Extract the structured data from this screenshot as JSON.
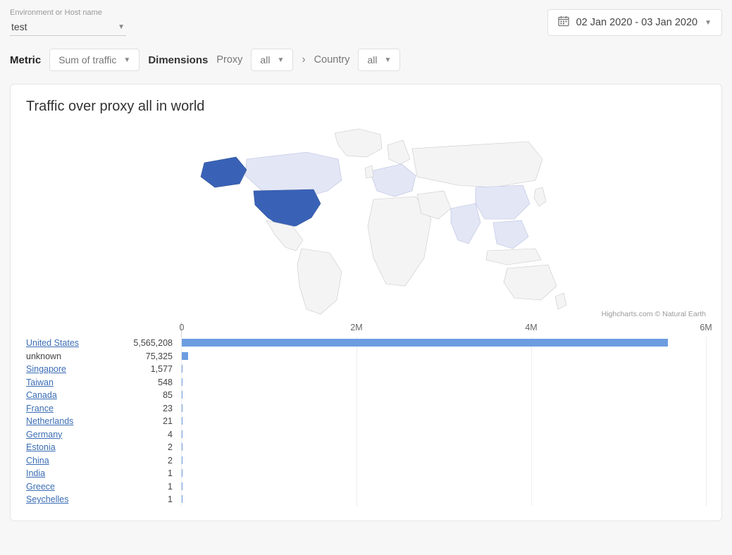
{
  "env": {
    "label": "Environment or Host name",
    "value": "test"
  },
  "date_range": "02 Jan 2020 - 03 Jan 2020",
  "filters": {
    "metric_label": "Metric",
    "metric_value": "Sum of traffic",
    "dimensions_label": "Dimensions",
    "proxy_label": "Proxy",
    "proxy_value": "all",
    "country_label": "Country",
    "country_value": "all"
  },
  "card": {
    "title": "Traffic over proxy all in world",
    "credit": "Highcharts.com © Natural Earth"
  },
  "map": {
    "base_fill": "#f4f4f5",
    "base_stroke": "#c8c8c8",
    "low_fill": "#e3e6f5",
    "high_fill": "#3962b7"
  },
  "chart": {
    "type": "bar",
    "xmax": 6000000,
    "ticks": [
      {
        "v": 0,
        "label": "0"
      },
      {
        "v": 2000000,
        "label": "2M"
      },
      {
        "v": 4000000,
        "label": "4M"
      },
      {
        "v": 6000000,
        "label": "6M"
      }
    ],
    "bar_color": "#6d9de0",
    "rows": [
      {
        "name": "United States",
        "value": 5565208,
        "display": "5,565,208",
        "link": true
      },
      {
        "name": "unknown",
        "value": 75325,
        "display": "75,325",
        "link": false
      },
      {
        "name": "Singapore",
        "value": 1577,
        "display": "1,577",
        "link": true
      },
      {
        "name": "Taiwan",
        "value": 548,
        "display": "548",
        "link": true
      },
      {
        "name": "Canada",
        "value": 85,
        "display": "85",
        "link": true
      },
      {
        "name": "France",
        "value": 23,
        "display": "23",
        "link": true
      },
      {
        "name": "Netherlands",
        "value": 21,
        "display": "21",
        "link": true
      },
      {
        "name": "Germany",
        "value": 4,
        "display": "4",
        "link": true
      },
      {
        "name": "Estonia",
        "value": 2,
        "display": "2",
        "link": true
      },
      {
        "name": "China",
        "value": 2,
        "display": "2",
        "link": true
      },
      {
        "name": "India",
        "value": 1,
        "display": "1",
        "link": true
      },
      {
        "name": "Greece",
        "value": 1,
        "display": "1",
        "link": true
      },
      {
        "name": "Seychelles",
        "value": 1,
        "display": "1",
        "link": true
      }
    ]
  }
}
